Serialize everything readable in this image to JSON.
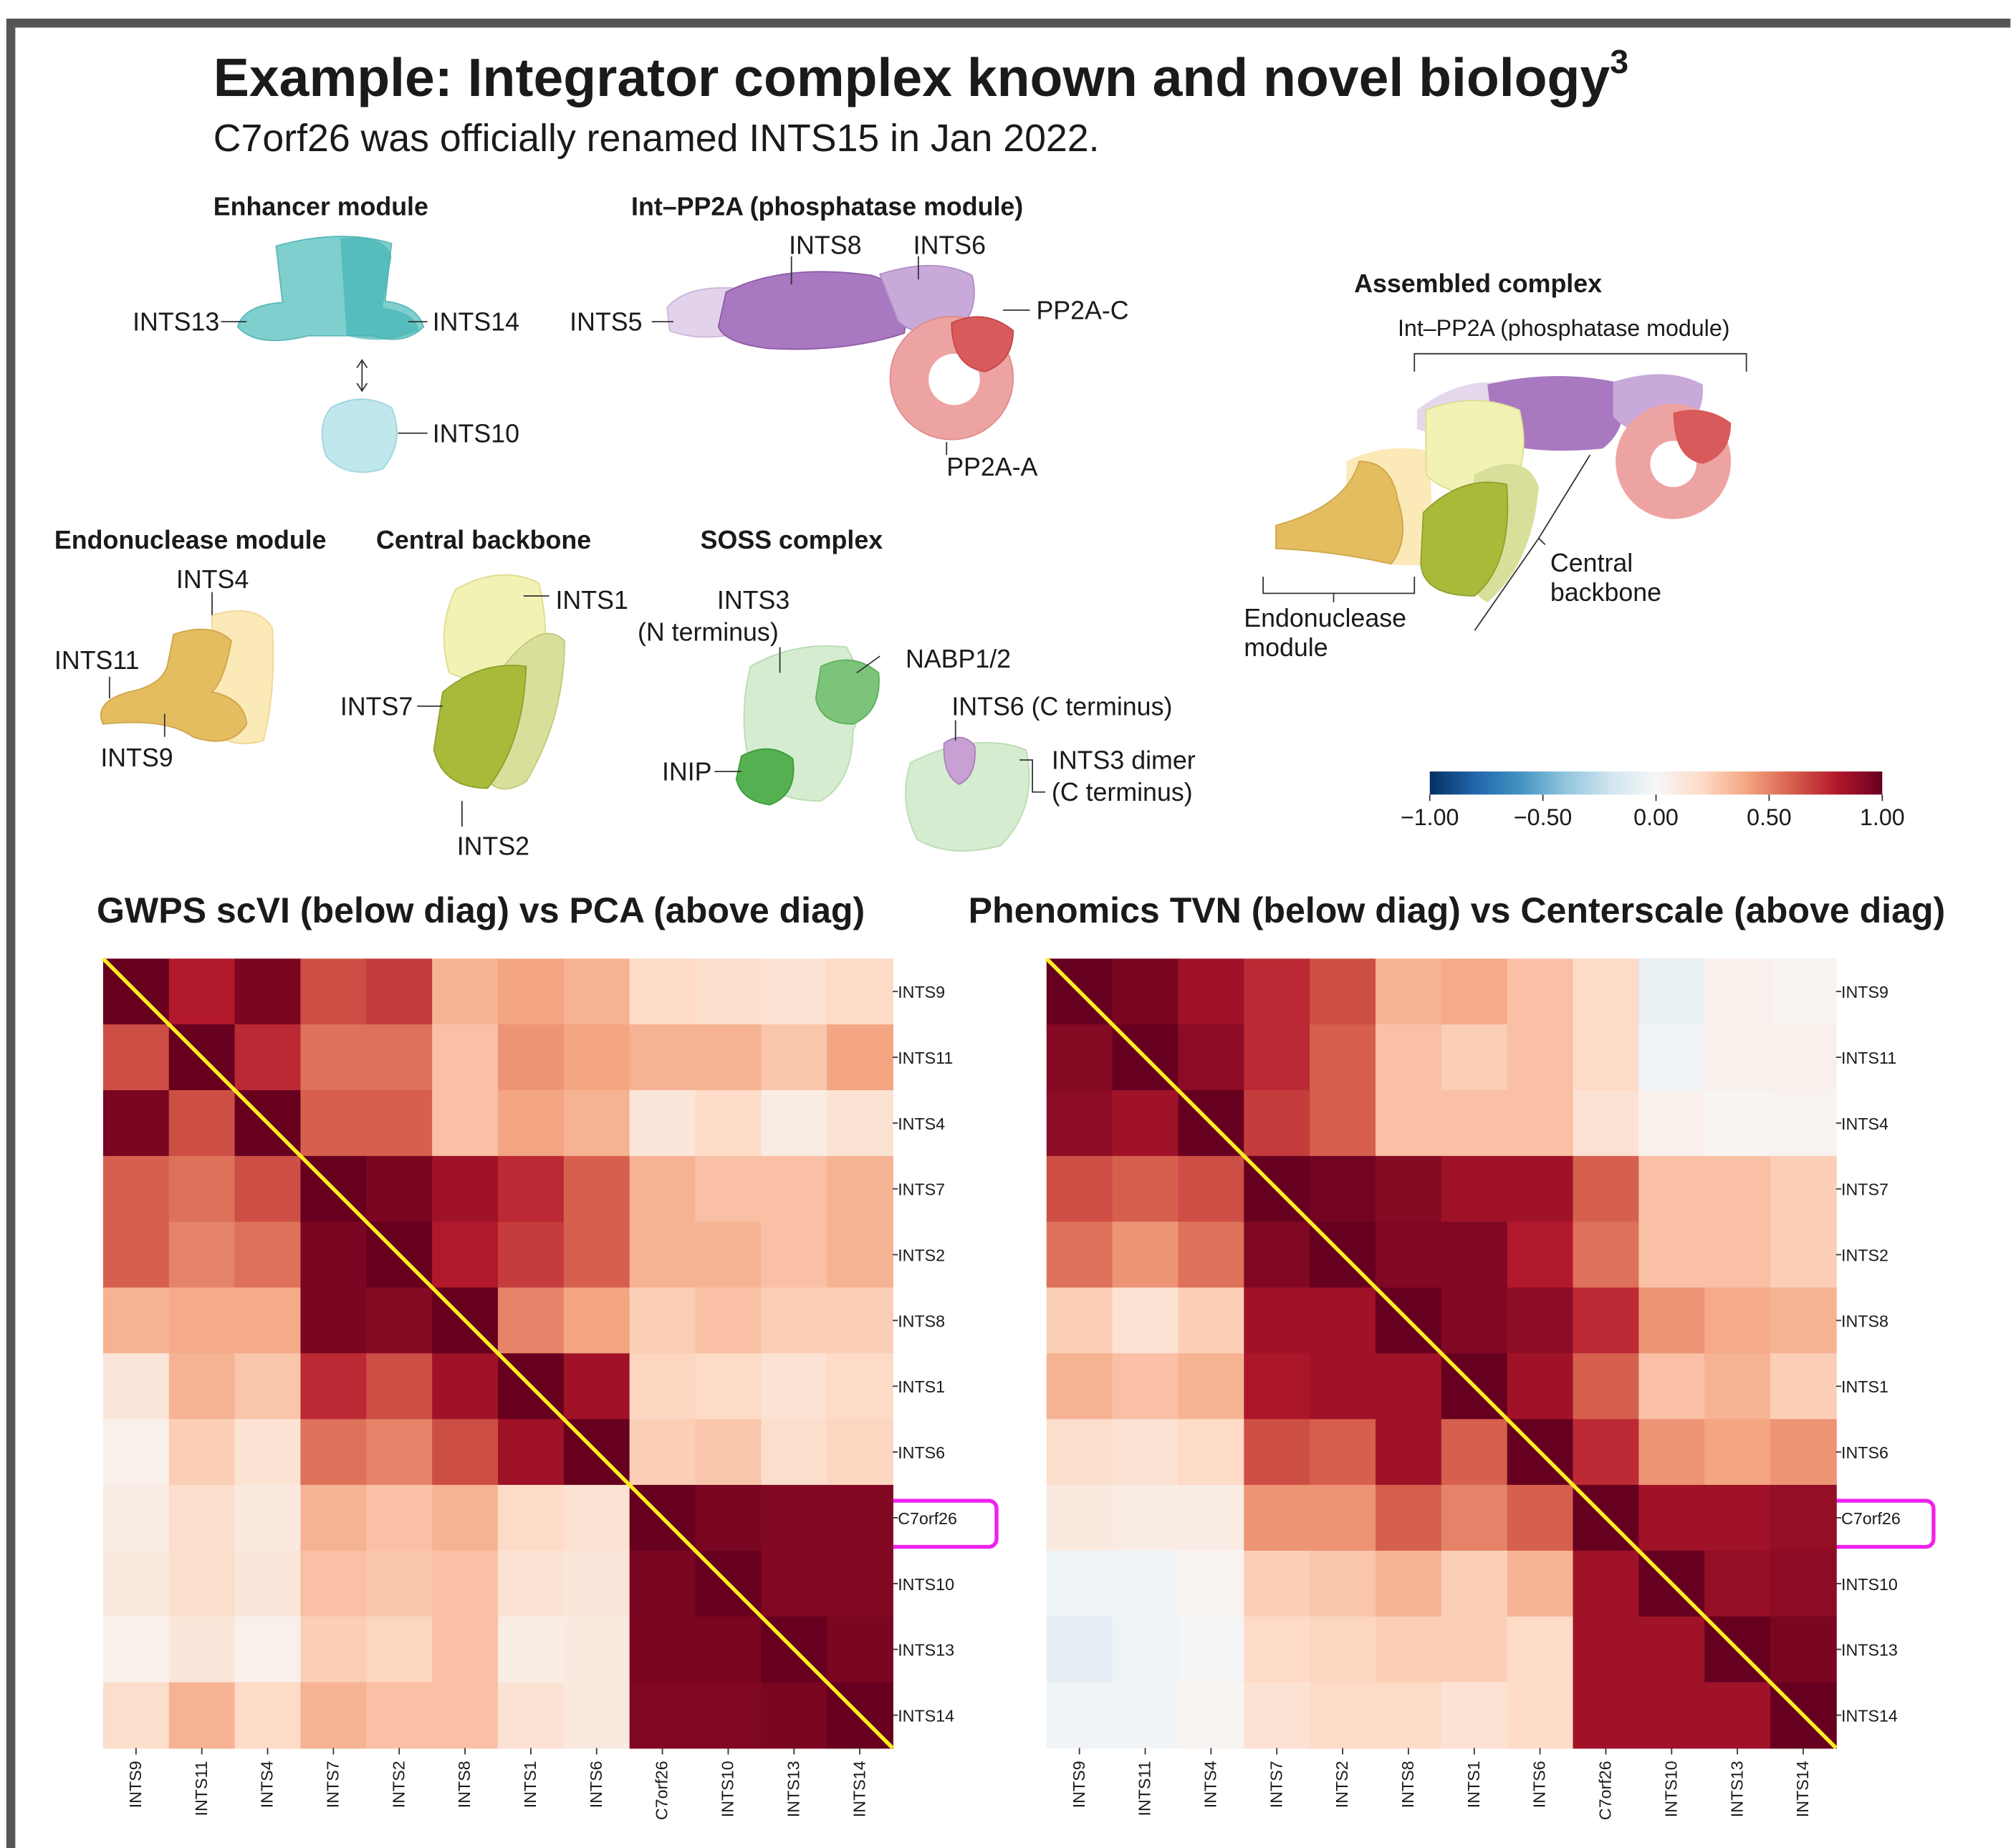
{
  "header": {
    "title": "Example: Integrator complex known and novel biology",
    "superscript": "3",
    "subtitle": "C7orf26 was officially renamed INTS15 in Jan 2022."
  },
  "diagram": {
    "enhancer_module": {
      "title": "Enhancer module",
      "labels": [
        "INTS13",
        "INTS14",
        "INTS10"
      ]
    },
    "phosphatase_module": {
      "title": "Int–PP2A (phosphatase module)",
      "labels": [
        "INTS8",
        "INTS6",
        "INTS5",
        "PP2A-C",
        "PP2A-A"
      ]
    },
    "endonuclease_module": {
      "title": "Endonuclease module",
      "labels": [
        "INTS4",
        "INTS11",
        "INTS9"
      ]
    },
    "central_backbone": {
      "title": "Central backbone",
      "labels": [
        "INTS1",
        "INTS7",
        "INTS2"
      ]
    },
    "soss_complex": {
      "title": "SOSS complex",
      "labels": [
        [
          "INTS3",
          "(N terminus)"
        ],
        "NABP1/2",
        "INTS6 (C terminus)",
        "INIP",
        [
          "INTS3 dimer",
          "(C terminus)"
        ]
      ]
    },
    "assembled_complex": {
      "title": "Assembled complex",
      "labels": [
        "Int–PP2A (phosphatase module)",
        [
          "Central",
          "backbone"
        ],
        [
          "Endonuclease",
          "module"
        ]
      ]
    }
  },
  "colorbar": {
    "zlim": [
      -1,
      1
    ],
    "colormap": "RdBu_r",
    "ticks": [
      {
        "value": -1,
        "label": "−1.00"
      },
      {
        "value": -0.5,
        "label": "−0.50"
      },
      {
        "value": 0,
        "label": "0.00"
      },
      {
        "value": 0.5,
        "label": "0.50"
      },
      {
        "value": 1,
        "label": "1.00"
      }
    ]
  },
  "chart_data": [
    {
      "type": "heatmap",
      "title": "GWPS scVI (below diag) vs PCA (above diag)",
      "rows": [
        "INTS9",
        "INTS11",
        "INTS4",
        "INTS7",
        "INTS2",
        "INTS8",
        "INTS1",
        "INTS6",
        "C7orf26",
        "INTS10",
        "INTS13",
        "INTS14"
      ],
      "columns": [
        "INTS9",
        "INTS11",
        "INTS4",
        "INTS7",
        "INTS2",
        "INTS8",
        "INTS1",
        "INTS6",
        "C7orf26",
        "INTS10",
        "INTS13",
        "INTS14"
      ],
      "values": [
        [
          1,
          0.8,
          0.95,
          0.65,
          0.7,
          0.35,
          0.4,
          0.35,
          0.2,
          0.18,
          0.15,
          0.2
        ],
        [
          0.65,
          1,
          0.75,
          0.55,
          0.55,
          0.3,
          0.45,
          0.4,
          0.35,
          0.35,
          0.28,
          0.4
        ],
        [
          0.95,
          0.65,
          1,
          0.6,
          0.6,
          0.3,
          0.4,
          0.35,
          0.12,
          0.2,
          0.08,
          0.15
        ],
        [
          0.6,
          0.55,
          0.65,
          1,
          0.95,
          0.85,
          0.75,
          0.6,
          0.35,
          0.3,
          0.3,
          0.35
        ],
        [
          0.6,
          0.5,
          0.55,
          0.95,
          1,
          0.8,
          0.7,
          0.6,
          0.35,
          0.35,
          0.3,
          0.35
        ],
        [
          0.35,
          0.38,
          0.38,
          0.95,
          0.92,
          1,
          0.5,
          0.4,
          0.25,
          0.3,
          0.25,
          0.25
        ],
        [
          0.12,
          0.35,
          0.28,
          0.75,
          0.65,
          0.85,
          1,
          0.85,
          0.22,
          0.2,
          0.15,
          0.2
        ],
        [
          0.05,
          0.25,
          0.15,
          0.55,
          0.5,
          0.65,
          0.85,
          1,
          0.25,
          0.28,
          0.18,
          0.22
        ],
        [
          0.08,
          0.18,
          0.1,
          0.35,
          0.3,
          0.35,
          0.2,
          0.15,
          1,
          0.95,
          0.93,
          0.93
        ],
        [
          0.1,
          0.18,
          0.12,
          0.3,
          0.28,
          0.3,
          0.15,
          0.12,
          0.95,
          1,
          0.93,
          0.93
        ],
        [
          0.05,
          0.12,
          0.05,
          0.25,
          0.22,
          0.3,
          0.08,
          0.1,
          0.95,
          0.95,
          1,
          0.95
        ],
        [
          0.18,
          0.35,
          0.2,
          0.35,
          0.3,
          0.3,
          0.15,
          0.1,
          0.93,
          0.93,
          0.95,
          1
        ]
      ],
      "zlim": [
        -1,
        1
      ]
    },
    {
      "type": "heatmap",
      "title": "Phenomics TVN (below diag) vs Centerscale (above diag)",
      "rows": [
        "INTS9",
        "INTS11",
        "INTS4",
        "INTS7",
        "INTS2",
        "INTS8",
        "INTS1",
        "INTS6",
        "C7orf26",
        "INTS10",
        "INTS13",
        "INTS14"
      ],
      "columns": [
        "INTS9",
        "INTS11",
        "INTS4",
        "INTS7",
        "INTS2",
        "INTS8",
        "INTS1",
        "INTS6",
        "C7orf26",
        "INTS10",
        "INTS13",
        "INTS14"
      ],
      "values": [
        [
          1,
          0.95,
          0.85,
          0.75,
          0.65,
          0.35,
          0.38,
          0.3,
          0.2,
          -0.08,
          0.05,
          0.03
        ],
        [
          0.92,
          1,
          0.9,
          0.75,
          0.6,
          0.3,
          0.25,
          0.3,
          0.2,
          -0.03,
          0.05,
          0.05
        ],
        [
          0.9,
          0.85,
          1,
          0.7,
          0.6,
          0.3,
          0.3,
          0.3,
          0.15,
          0.05,
          0.02,
          0.03
        ],
        [
          0.65,
          0.6,
          0.65,
          1,
          0.97,
          0.92,
          0.85,
          0.85,
          0.6,
          0.3,
          0.3,
          0.25
        ],
        [
          0.55,
          0.45,
          0.55,
          0.93,
          1,
          0.93,
          0.93,
          0.8,
          0.55,
          0.3,
          0.3,
          0.25
        ],
        [
          0.25,
          0.15,
          0.25,
          0.85,
          0.85,
          1,
          0.93,
          0.9,
          0.75,
          0.45,
          0.38,
          0.35
        ],
        [
          0.35,
          0.3,
          0.35,
          0.82,
          0.85,
          0.85,
          1,
          0.85,
          0.6,
          0.3,
          0.35,
          0.25
        ],
        [
          0.18,
          0.15,
          0.2,
          0.65,
          0.6,
          0.85,
          0.6,
          1,
          0.75,
          0.45,
          0.4,
          0.45
        ],
        [
          0.1,
          0.08,
          0.08,
          0.45,
          0.45,
          0.6,
          0.5,
          0.6,
          1,
          0.85,
          0.85,
          0.88
        ],
        [
          -0.05,
          -0.03,
          0.03,
          0.25,
          0.28,
          0.35,
          0.25,
          0.35,
          0.85,
          1,
          0.88,
          0.9
        ],
        [
          -0.1,
          -0.05,
          -0.02,
          0.2,
          0.22,
          0.25,
          0.25,
          0.2,
          0.85,
          0.85,
          1,
          0.95
        ],
        [
          -0.03,
          -0.03,
          0.02,
          0.15,
          0.2,
          0.2,
          0.15,
          0.2,
          0.85,
          0.85,
          0.85,
          1
        ]
      ],
      "zlim": [
        -1,
        1
      ]
    }
  ]
}
